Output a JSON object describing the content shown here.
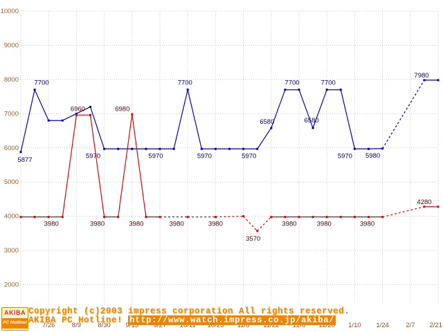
{
  "chart_data": {
    "type": "line",
    "title": "",
    "x_tick_labels": [
      "7/12",
      "7/26",
      "8/9",
      "8/30",
      "9/13",
      "9/27",
      "10/11",
      "10/25",
      "11/8",
      "11/22",
      "12/6",
      "12/20",
      "1/10",
      "1/24",
      "2/7",
      "2/21"
    ],
    "y_tick_labels": [
      10000,
      9000,
      8000,
      7000,
      6000,
      5000,
      4000,
      3000,
      2000
    ],
    "ylim": [
      1000,
      10000
    ],
    "x_points_per_tick": 2,
    "grid": true,
    "grid_color": "#c9c9c9",
    "axis_color_y": "#a06020",
    "axis_color_x": "#8a4a20",
    "legend": "none",
    "series": [
      {
        "name": "blue-price",
        "color": "#0000cc",
        "label_color": "#000066",
        "points": [
          [
            0,
            5877,
            0
          ],
          [
            1,
            7700,
            0
          ],
          [
            2,
            6800,
            0
          ],
          [
            3,
            6800,
            0
          ],
          [
            4,
            7000,
            0
          ],
          [
            5,
            7200,
            0
          ],
          [
            6,
            5970,
            0
          ],
          [
            7,
            5970,
            0
          ],
          [
            8,
            5970,
            0
          ],
          [
            9,
            5970,
            0
          ],
          [
            10,
            5970,
            0
          ],
          [
            11,
            5970,
            0
          ],
          [
            12,
            7700,
            0
          ],
          [
            13,
            5970,
            0
          ],
          [
            14,
            5970,
            0
          ],
          [
            15,
            5970,
            0
          ],
          [
            16,
            5970,
            0
          ],
          [
            17,
            5970,
            0
          ],
          [
            18,
            6580,
            0
          ],
          [
            19,
            7700,
            0
          ],
          [
            20,
            7700,
            0
          ],
          [
            21,
            6580,
            0
          ],
          [
            22,
            7700,
            0
          ],
          [
            23,
            7700,
            0
          ],
          [
            24,
            5970,
            0
          ],
          [
            25,
            5970,
            0
          ],
          [
            26,
            5980,
            1
          ],
          [
            29,
            7980,
            0
          ],
          [
            30,
            7980,
            0
          ]
        ],
        "labels": [
          [
            0,
            "5877",
            6,
            14
          ],
          [
            1,
            "7700",
            10,
            -7
          ],
          [
            6,
            "5970",
            -16,
            13
          ],
          [
            10,
            "5970",
            -6,
            13
          ],
          [
            12,
            "7700",
            -4,
            -7
          ],
          [
            14,
            "5970",
            -16,
            13
          ],
          [
            17,
            "5970",
            -12,
            13
          ],
          [
            18,
            "6580",
            -6,
            -6
          ],
          [
            20,
            "7700",
            -10,
            -7
          ],
          [
            21,
            "6580",
            -2,
            -8
          ],
          [
            22,
            "7700",
            2,
            -7
          ],
          [
            24,
            "5970",
            -14,
            13
          ],
          [
            26,
            "5980",
            -14,
            13
          ],
          [
            30,
            "7980",
            -24,
            -4
          ]
        ]
      },
      {
        "name": "red-price",
        "color": "#e60000",
        "label_color": "#550000",
        "points": [
          [
            0,
            3980,
            0
          ],
          [
            1,
            3980,
            0
          ],
          [
            2,
            3980,
            0
          ],
          [
            3,
            3980,
            0
          ],
          [
            4,
            6960,
            0
          ],
          [
            5,
            6960,
            0
          ],
          [
            6,
            3980,
            0
          ],
          [
            7,
            3980,
            0
          ],
          [
            8,
            6980,
            0
          ],
          [
            9,
            3980,
            0
          ],
          [
            10,
            3980,
            1
          ],
          [
            12,
            3980,
            1
          ],
          [
            14,
            3980,
            1
          ],
          [
            16,
            4000,
            1
          ],
          [
            17,
            3570,
            1
          ],
          [
            18,
            3980,
            0
          ],
          [
            19,
            3980,
            0
          ],
          [
            20,
            3980,
            0
          ],
          [
            21,
            3980,
            0
          ],
          [
            22,
            3980,
            0
          ],
          [
            23,
            3980,
            0
          ],
          [
            24,
            3980,
            0
          ],
          [
            25,
            3980,
            0
          ],
          [
            26,
            3980,
            1
          ],
          [
            29,
            4280,
            0
          ],
          [
            30,
            4280,
            0
          ]
        ],
        "labels": [
          [
            2,
            "3980",
            4,
            13
          ],
          [
            4,
            "6960",
            2,
            -6
          ],
          [
            6,
            "3980",
            -10,
            13
          ],
          [
            8,
            "6980",
            -14,
            -5
          ],
          [
            9,
            "3980",
            -14,
            13
          ],
          [
            12,
            "3980",
            -16,
            13
          ],
          [
            14,
            "3980",
            0,
            13
          ],
          [
            17,
            "3570",
            -6,
            14
          ],
          [
            20,
            "3980",
            -14,
            13
          ],
          [
            22,
            "3980",
            -4,
            13
          ],
          [
            26,
            "3980",
            -22,
            13
          ],
          [
            30,
            "4280",
            -20,
            -4
          ]
        ]
      }
    ]
  },
  "footer": {
    "copyright": "Copyright (c)2003 impress corporation All rights reserved.",
    "site_name": "AKIBA PC Hotline!",
    "site_url": "http://www.watch.impress.co.jp/akiba/",
    "logo_top": "AKIBA",
    "logo_bottom": "PC Hotline!",
    "text_color": "#f08300"
  }
}
